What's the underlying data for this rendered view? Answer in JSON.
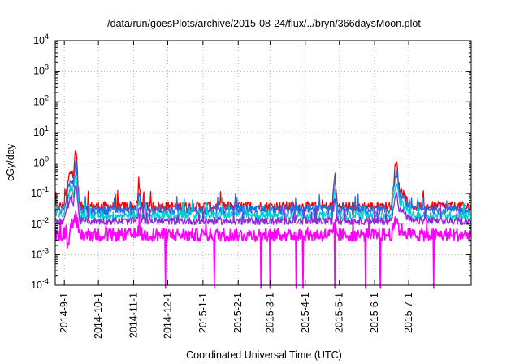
{
  "chart_data": {
    "type": "line",
    "title": "/data/run/goesPlots/archive/2015-08-24/flux/../bryn/366daysMoon.plot",
    "xlabel": "Coordinated Universal Time (UTC)",
    "ylabel": "cGy/day",
    "yscale": "log",
    "ylim_exp": [
      -4,
      4
    ],
    "y_ticks": [
      {
        "base": "10",
        "exp": "-4",
        "value_exp": -4
      },
      {
        "base": "10",
        "exp": "-3",
        "value_exp": -3
      },
      {
        "base": "10",
        "exp": "-2",
        "value_exp": -2
      },
      {
        "base": "10",
        "exp": "-1",
        "value_exp": -1
      },
      {
        "base": "10",
        "exp": "0",
        "value_exp": 0
      },
      {
        "base": "10",
        "exp": "1",
        "value_exp": 1
      },
      {
        "base": "10",
        "exp": "2",
        "value_exp": 2
      },
      {
        "base": "10",
        "exp": "3",
        "value_exp": 3
      },
      {
        "base": "10",
        "exp": "4",
        "value_exp": 4
      }
    ],
    "x_range_days": [
      0,
      366
    ],
    "x_ticks": [
      {
        "label": "2014-9-1",
        "day": 8
      },
      {
        "label": "2014-10-1",
        "day": 38
      },
      {
        "label": "2014-11-1",
        "day": 69
      },
      {
        "label": "2014-12-1",
        "day": 99
      },
      {
        "label": "2015-1-1",
        "day": 130
      },
      {
        "label": "2015-2-1",
        "day": 161
      },
      {
        "label": "2015-3-1",
        "day": 189
      },
      {
        "label": "2015-4-1",
        "day": 220
      },
      {
        "label": "2015-5-1",
        "day": 250
      },
      {
        "label": "2015-6-1",
        "day": 281
      },
      {
        "label": "2015-7-1",
        "day": 311
      }
    ],
    "grid": true,
    "series": [
      {
        "name": "red",
        "color": "#ff0000",
        "baseline_exp": -1.42,
        "noise": 0.16
      },
      {
        "name": "blue",
        "color": "#1e6fe8",
        "baseline_exp": -1.55,
        "noise": 0.15
      },
      {
        "name": "cyan",
        "color": "#00ced1",
        "baseline_exp": -1.72,
        "noise": 0.13
      },
      {
        "name": "purple",
        "color": "#8e2bd6",
        "baseline_exp": -1.9,
        "noise": 0.12
      },
      {
        "name": "magenta",
        "color": "#ff00ff",
        "baseline_exp": -2.35,
        "noise": 0.22
      }
    ],
    "peaks": [
      {
        "day": 14,
        "red_exp": -0.25,
        "width": 3
      },
      {
        "day": 18,
        "red_exp": 0.45,
        "width": 1.5
      },
      {
        "day": 74,
        "red_exp": -0.8,
        "width": 1
      },
      {
        "day": 246,
        "red_exp": -0.35,
        "width": 1
      },
      {
        "day": 300,
        "red_exp": -0.02,
        "width": 2
      },
      {
        "day": 304,
        "red_exp": -0.9,
        "width": 4
      }
    ],
    "magenta_dips_day": [
      97,
      140,
      181,
      189,
      212,
      218,
      246,
      273,
      286,
      333
    ]
  }
}
